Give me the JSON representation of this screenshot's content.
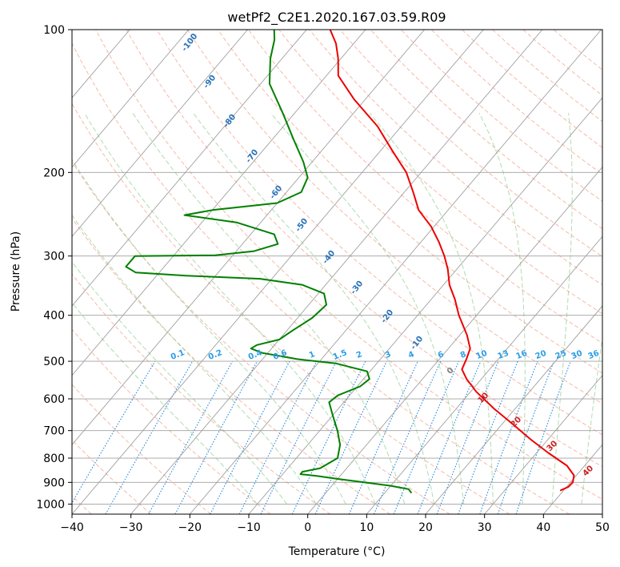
{
  "chart_data": {
    "type": "line",
    "subtype": "skew-T log-P diagram",
    "title": "wetPf2_C2E1.2020.167.03.59.R09",
    "xlabel": "Temperature (°C)",
    "ylabel": "Pressure (hPa)",
    "xlim": [
      -40,
      50
    ],
    "ylim": [
      1050,
      100
    ],
    "y_scale": "log",
    "grid": true,
    "x_ticks": [
      -40,
      -30,
      -20,
      -10,
      0,
      10,
      20,
      30,
      40,
      50
    ],
    "x_tick_labels": [
      "−40",
      "−30",
      "−20",
      "−10",
      "0",
      "10",
      "20",
      "30",
      "40",
      "50"
    ],
    "y_ticks": [
      100,
      200,
      300,
      400,
      500,
      600,
      700,
      800,
      900,
      1000
    ],
    "y_tick_labels": [
      "100",
      "200",
      "300",
      "400",
      "500",
      "600",
      "700",
      "800",
      "900",
      "1000"
    ],
    "colors": {
      "temperature": "#ee0000",
      "dewpoint": "#008000",
      "isotherm": "#a0a0a0",
      "dry_adiabat": "#f08060",
      "moist_adiabat": "#7cc47c",
      "mixing_ratio": "#2288dd",
      "label_blue": "#2a73b8",
      "label_red": "#cc2222",
      "label_mix": "#2a9de8",
      "label_gray": "#808080"
    },
    "series": [
      {
        "name": "Temperature",
        "color": "#ee0000",
        "points": [
          {
            "p": 935,
            "t": 39.5
          },
          {
            "p": 920,
            "t": 40.3
          },
          {
            "p": 900,
            "t": 40.4
          },
          {
            "p": 870,
            "t": 39.6
          },
          {
            "p": 830,
            "t": 37.0
          },
          {
            "p": 780,
            "t": 32.0
          },
          {
            "p": 730,
            "t": 27.0
          },
          {
            "p": 680,
            "t": 22.0
          },
          {
            "p": 630,
            "t": 16.5
          },
          {
            "p": 580,
            "t": 11.0
          },
          {
            "p": 545,
            "t": 7.5
          },
          {
            "p": 520,
            "t": 5.3
          },
          {
            "p": 495,
            "t": 4.6
          },
          {
            "p": 470,
            "t": 3.7
          },
          {
            "p": 440,
            "t": 1.2
          },
          {
            "p": 400,
            "t": -3.0
          },
          {
            "p": 370,
            "t": -6.0
          },
          {
            "p": 345,
            "t": -9.0
          },
          {
            "p": 320,
            "t": -11.5
          },
          {
            "p": 300,
            "t": -14.0
          },
          {
            "p": 280,
            "t": -17.0
          },
          {
            "p": 260,
            "t": -20.5
          },
          {
            "p": 240,
            "t": -25.0
          },
          {
            "p": 220,
            "t": -28.5
          },
          {
            "p": 200,
            "t": -32.5
          },
          {
            "p": 180,
            "t": -38.0
          },
          {
            "p": 160,
            "t": -44.0
          },
          {
            "p": 140,
            "t": -52.0
          },
          {
            "p": 125,
            "t": -58.0
          },
          {
            "p": 115,
            "t": -60.5
          },
          {
            "p": 107,
            "t": -63.0
          },
          {
            "p": 100,
            "t": -66.0
          }
        ]
      },
      {
        "name": "Dewpoint",
        "color": "#008000",
        "points": [
          {
            "p": 945,
            "t": 14.4
          },
          {
            "p": 930,
            "t": 13.5
          },
          {
            "p": 915,
            "t": 10.0
          },
          {
            "p": 900,
            "t": 5.0
          },
          {
            "p": 885,
            "t": 0.0
          },
          {
            "p": 872,
            "t": -4.0
          },
          {
            "p": 865,
            "t": -7.0
          },
          {
            "p": 855,
            "t": -7.0
          },
          {
            "p": 840,
            "t": -4.5
          },
          {
            "p": 800,
            "t": -3.0
          },
          {
            "p": 750,
            "t": -4.5
          },
          {
            "p": 700,
            "t": -7.0
          },
          {
            "p": 650,
            "t": -10.0
          },
          {
            "p": 610,
            "t": -12.5
          },
          {
            "p": 590,
            "t": -12.0
          },
          {
            "p": 565,
            "t": -9.5
          },
          {
            "p": 545,
            "t": -9.0
          },
          {
            "p": 525,
            "t": -10.5
          },
          {
            "p": 505,
            "t": -17.0
          },
          {
            "p": 495,
            "t": -24.0
          },
          {
            "p": 480,
            "t": -31.0
          },
          {
            "p": 470,
            "t": -33.5
          },
          {
            "p": 462,
            "t": -33.0
          },
          {
            "p": 450,
            "t": -30.0
          },
          {
            "p": 430,
            "t": -29.0
          },
          {
            "p": 405,
            "t": -27.5
          },
          {
            "p": 380,
            "t": -27.0
          },
          {
            "p": 360,
            "t": -29.0
          },
          {
            "p": 345,
            "t": -34.0
          },
          {
            "p": 335,
            "t": -42.0
          },
          {
            "p": 330,
            "t": -55.0
          },
          {
            "p": 325,
            "t": -64.0
          },
          {
            "p": 316,
            "t": -66.5
          },
          {
            "p": 300,
            "t": -66.5
          },
          {
            "p": 299,
            "t": -53.0
          },
          {
            "p": 293,
            "t": -47.0
          },
          {
            "p": 283,
            "t": -44.0
          },
          {
            "p": 270,
            "t": -46.0
          },
          {
            "p": 255,
            "t": -54.0
          },
          {
            "p": 246,
            "t": -64.0
          },
          {
            "p": 240,
            "t": -60.0
          },
          {
            "p": 232,
            "t": -50.0
          },
          {
            "p": 220,
            "t": -47.5
          },
          {
            "p": 205,
            "t": -48.5
          },
          {
            "p": 190,
            "t": -51.5
          },
          {
            "p": 170,
            "t": -56.5
          },
          {
            "p": 150,
            "t": -62.0
          },
          {
            "p": 130,
            "t": -68.5
          },
          {
            "p": 115,
            "t": -72.0
          },
          {
            "p": 105,
            "t": -74.0
          },
          {
            "p": 100,
            "t": -75.5
          }
        ]
      }
    ],
    "dry_adiabat_labels": [
      "-100",
      "-90",
      "-80",
      "-70",
      "-60",
      "-50",
      "-40",
      "-30",
      "-20",
      "-10"
    ],
    "moist_adiabat_labels": [
      "0",
      "10",
      "20",
      "30",
      "40"
    ],
    "mixing_ratio_labels": [
      "0.1",
      "0.2",
      "0.4",
      "0.6",
      "1",
      "1.5",
      "2",
      "3",
      "4",
      "6",
      "8",
      "10",
      "13",
      "16",
      "20",
      "25",
      "30",
      "36"
    ]
  }
}
